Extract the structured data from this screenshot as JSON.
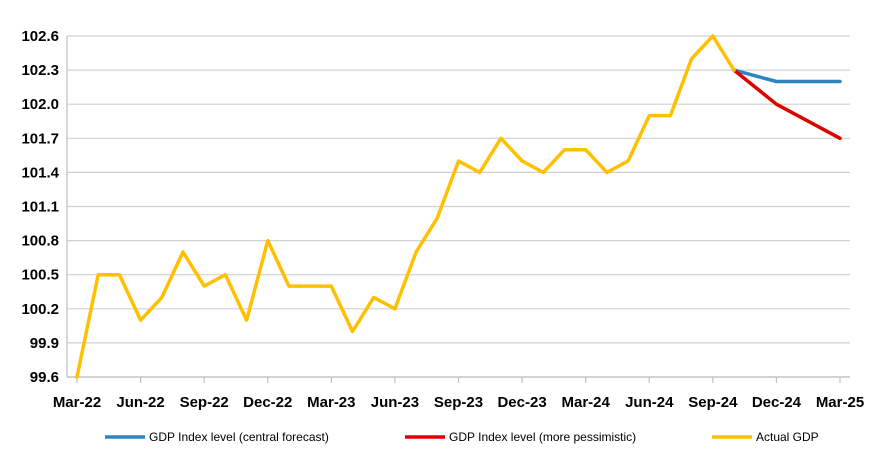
{
  "chart_data": {
    "type": "line",
    "title": "",
    "xlabel": "",
    "ylabel": "",
    "ylim": [
      99.6,
      102.6
    ],
    "yticks": [
      "99.6",
      "99.9",
      "100.2",
      "100.5",
      "100.8",
      "101.1",
      "101.4",
      "101.7",
      "102.0",
      "102.3",
      "102.6"
    ],
    "grid": true,
    "legend_position": "bottom",
    "x": [
      "Mar-22",
      "Apr-22",
      "May-22",
      "Jun-22",
      "Jul-22",
      "Aug-22",
      "Sep-22",
      "Oct-22",
      "Nov-22",
      "Dec-22",
      "Jan-23",
      "Feb-23",
      "Mar-23",
      "Apr-23",
      "May-23",
      "Jun-23",
      "Jul-23",
      "Aug-23",
      "Sep-23",
      "Oct-23",
      "Nov-23",
      "Dec-23",
      "Jan-24",
      "Feb-24",
      "Mar-24",
      "Apr-24",
      "May-24",
      "Jun-24",
      "Jul-24",
      "Aug-24",
      "Sep-24",
      "Oct-24",
      "Nov-24",
      "Dec-24",
      "Jan-25",
      "Feb-25",
      "Mar-25"
    ],
    "xticks": [
      "Mar-22",
      "Jun-22",
      "Sep-22",
      "Dec-22",
      "Mar-23",
      "Jun-23",
      "Sep-23",
      "Dec-23",
      "Mar-24",
      "Jun-24",
      "Sep-24",
      "Dec-24",
      "Mar-25"
    ],
    "series": [
      {
        "name": "GDP Index level (central forecast)",
        "color": "#2E86C1",
        "values": [
          null,
          null,
          null,
          null,
          null,
          null,
          null,
          null,
          null,
          null,
          null,
          null,
          null,
          null,
          null,
          null,
          null,
          null,
          null,
          null,
          null,
          null,
          null,
          null,
          null,
          null,
          null,
          null,
          null,
          null,
          null,
          102.3,
          102.25,
          102.2,
          102.2,
          102.2,
          102.2
        ]
      },
      {
        "name": "GDP Index level (more pessimistic)",
        "color": "#E00000",
        "values": [
          null,
          null,
          null,
          null,
          null,
          null,
          null,
          null,
          null,
          null,
          null,
          null,
          null,
          null,
          null,
          null,
          null,
          null,
          null,
          null,
          null,
          null,
          null,
          null,
          null,
          null,
          null,
          null,
          null,
          null,
          null,
          102.3,
          102.15,
          102.0,
          101.9,
          101.8,
          101.7
        ]
      },
      {
        "name": "Actual GDP",
        "color": "#FFC000",
        "values": [
          99.6,
          100.5,
          100.5,
          100.1,
          100.3,
          100.7,
          100.4,
          100.5,
          100.1,
          100.8,
          100.4,
          100.4,
          100.4,
          100.0,
          100.3,
          100.2,
          100.7,
          101.0,
          101.5,
          101.4,
          101.7,
          101.5,
          101.4,
          101.6,
          101.6,
          101.4,
          101.5,
          101.9,
          101.9,
          102.4,
          102.6,
          102.3,
          null,
          null,
          null,
          null,
          null
        ]
      }
    ]
  }
}
